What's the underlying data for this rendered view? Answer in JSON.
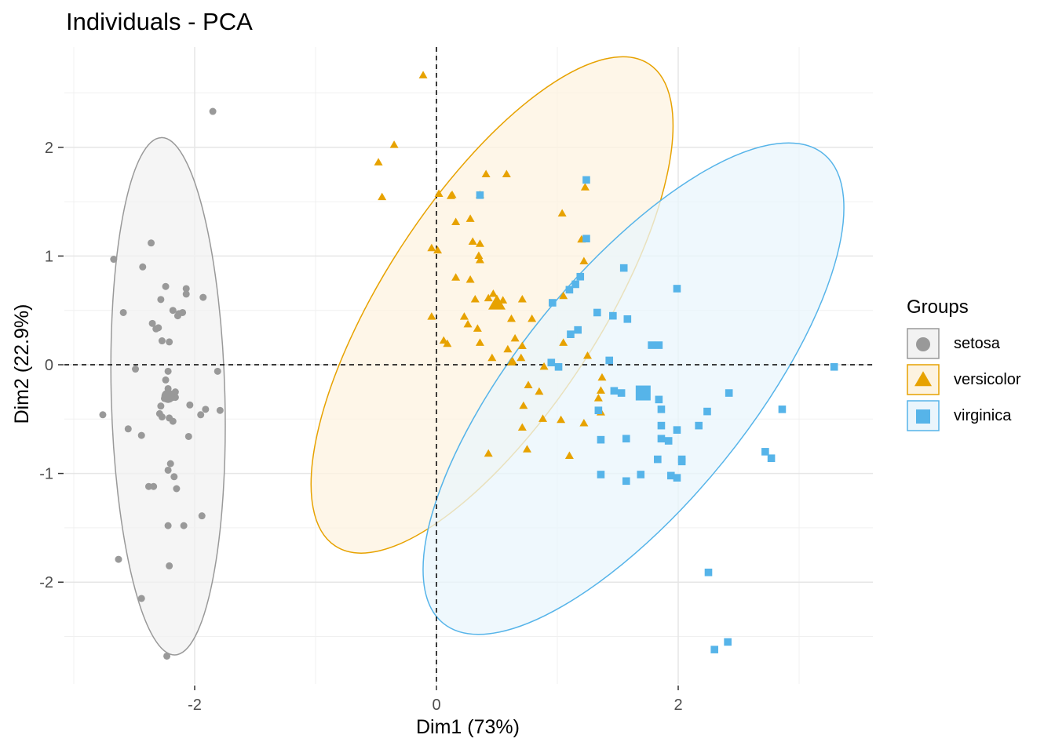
{
  "chart_data": {
    "type": "scatter",
    "title": "Individuals - PCA",
    "xlabel": "Dim1 (73%)",
    "ylabel": "Dim2 (22.9%)",
    "xlim": [
      -3.0,
      3.6
    ],
    "ylim": [
      -2.95,
      2.95
    ],
    "x_ticks": [
      -2,
      0,
      2
    ],
    "y_ticks": [
      -2,
      -1,
      0,
      1,
      2
    ],
    "x_tick_labels": [
      "-2",
      "0",
      "2"
    ],
    "y_tick_labels": [
      "-2",
      "-1",
      "0",
      "1",
      "2"
    ],
    "grid": true,
    "reference_lines": {
      "x": 0,
      "y": 0,
      "style": "dashed"
    },
    "legend_title": "Groups",
    "legend_position": "right",
    "series": [
      {
        "name": "setosa",
        "marker": "circle",
        "color": "#999999",
        "fill": "#f2f2f2",
        "centroid": [
          -2.22,
          -0.29
        ],
        "ellipse": {
          "cx": -2.22,
          "cy": -0.29,
          "rx": 0.47,
          "ry": 2.38,
          "angle": -1.5
        },
        "points": [
          [
            -1.85,
            2.33
          ],
          [
            -2.67,
            0.97
          ],
          [
            -2.36,
            1.12
          ],
          [
            -2.43,
            0.9
          ],
          [
            -2.24,
            0.72
          ],
          [
            -2.28,
            0.6
          ],
          [
            -2.07,
            0.7
          ],
          [
            -2.07,
            0.65
          ],
          [
            -1.93,
            0.62
          ],
          [
            -2.59,
            0.48
          ],
          [
            -2.18,
            0.5
          ],
          [
            -2.14,
            0.45
          ],
          [
            -2.3,
            0.34
          ],
          [
            -2.35,
            0.38
          ],
          [
            -2.32,
            0.33
          ],
          [
            -2.13,
            0.47
          ],
          [
            -2.1,
            0.48
          ],
          [
            -2.27,
            0.22
          ],
          [
            -2.21,
            0.21
          ],
          [
            -2.22,
            -0.06
          ],
          [
            -2.49,
            -0.04
          ],
          [
            -2.24,
            -0.14
          ],
          [
            -1.81,
            -0.06
          ],
          [
            -2.22,
            -0.22
          ],
          [
            -2.21,
            -0.29
          ],
          [
            -2.18,
            -0.3
          ],
          [
            -2.25,
            -0.31
          ],
          [
            -2.16,
            -0.25
          ],
          [
            -2.28,
            -0.38
          ],
          [
            -2.04,
            -0.37
          ],
          [
            -2.23,
            -0.29
          ],
          [
            -2.16,
            -0.3
          ],
          [
            -2.76,
            -0.46
          ],
          [
            -2.29,
            -0.45
          ],
          [
            -2.21,
            -0.49
          ],
          [
            -2.27,
            -0.48
          ],
          [
            -2.18,
            -0.52
          ],
          [
            -1.91,
            -0.41
          ],
          [
            -1.79,
            -0.42
          ],
          [
            -1.95,
            -0.46
          ],
          [
            -2.55,
            -0.59
          ],
          [
            -2.44,
            -0.65
          ],
          [
            -2.05,
            -0.66
          ],
          [
            -2.2,
            -0.91
          ],
          [
            -2.22,
            -0.97
          ],
          [
            -2.17,
            -1.03
          ],
          [
            -2.38,
            -1.12
          ],
          [
            -2.34,
            -1.12
          ],
          [
            -2.15,
            -1.14
          ],
          [
            -2.22,
            -1.48
          ],
          [
            -2.09,
            -1.48
          ],
          [
            -1.94,
            -1.39
          ],
          [
            -2.63,
            -1.79
          ],
          [
            -2.21,
            -1.85
          ],
          [
            -2.44,
            -2.15
          ],
          [
            -2.23,
            -2.68
          ]
        ]
      },
      {
        "name": "versicolor",
        "marker": "triangle",
        "color": "#E7A200",
        "fill": "#fdf3e0",
        "centroid": [
          0.5,
          0.56
        ],
        "ellipse": {
          "cx": 0.46,
          "cy": 0.55,
          "rx": 2.38,
          "ry": 0.96,
          "angle": -57
        },
        "points": [
          [
            -0.11,
            2.66
          ],
          [
            -0.35,
            2.02
          ],
          [
            -0.48,
            1.86
          ],
          [
            -0.45,
            1.54
          ],
          [
            0.41,
            1.75
          ],
          [
            0.58,
            1.75
          ],
          [
            0.02,
            1.57
          ],
          [
            0.12,
            1.55
          ],
          [
            0.13,
            1.56
          ],
          [
            0.36,
            1.56
          ],
          [
            1.23,
            1.63
          ],
          [
            1.04,
            1.39
          ],
          [
            0.28,
            1.34
          ],
          [
            0.16,
            1.31
          ],
          [
            0.3,
            1.13
          ],
          [
            0.36,
            1.11
          ],
          [
            1.2,
            1.15
          ],
          [
            -0.04,
            1.07
          ],
          [
            0.01,
            1.05
          ],
          [
            0.35,
            1.0
          ],
          [
            0.36,
            0.96
          ],
          [
            1.22,
            0.95
          ],
          [
            0.16,
            0.8
          ],
          [
            0.28,
            0.78
          ],
          [
            0.32,
            0.6
          ],
          [
            0.55,
            0.59
          ],
          [
            0.71,
            0.6
          ],
          [
            1.05,
            0.63
          ],
          [
            0.43,
            0.61
          ],
          [
            0.47,
            0.65
          ],
          [
            -0.04,
            0.44
          ],
          [
            0.23,
            0.44
          ],
          [
            0.62,
            0.42
          ],
          [
            0.79,
            0.42
          ],
          [
            0.26,
            0.37
          ],
          [
            0.34,
            0.33
          ],
          [
            0.06,
            0.22
          ],
          [
            0.09,
            0.19
          ],
          [
            0.36,
            0.2
          ],
          [
            0.65,
            0.24
          ],
          [
            0.71,
            0.17
          ],
          [
            0.59,
            0.14
          ],
          [
            0.46,
            0.06
          ],
          [
            0.62,
            0.02
          ],
          [
            1.05,
            0.2
          ],
          [
            1.25,
            0.08
          ],
          [
            0.7,
            0.06
          ],
          [
            0.63,
            0.03
          ],
          [
            0.89,
            -0.02
          ],
          [
            0.76,
            -0.19
          ],
          [
            1.37,
            -0.12
          ],
          [
            1.36,
            -0.24
          ],
          [
            0.85,
            -0.25
          ],
          [
            1.34,
            -0.31
          ],
          [
            0.72,
            -0.38
          ],
          [
            1.36,
            -0.44
          ],
          [
            0.88,
            -0.5
          ],
          [
            1.03,
            -0.51
          ],
          [
            1.22,
            -0.54
          ],
          [
            0.71,
            -0.58
          ],
          [
            0.43,
            -0.82
          ],
          [
            1.1,
            -0.84
          ],
          [
            0.75,
            -0.78
          ]
        ]
      },
      {
        "name": "virginica",
        "marker": "square",
        "color": "#56B4E9",
        "fill": "#eaf5fc",
        "centroid": [
          1.71,
          -0.26
        ],
        "ellipse": {
          "cx": 1.63,
          "cy": -0.22,
          "rx": 2.5,
          "ry": 1.03,
          "angle": -51
        },
        "points": [
          [
            1.24,
            1.7
          ],
          [
            0.36,
            1.56
          ],
          [
            1.24,
            1.16
          ],
          [
            1.55,
            0.89
          ],
          [
            1.99,
            0.7
          ],
          [
            1.19,
            0.81
          ],
          [
            1.1,
            0.69
          ],
          [
            1.15,
            0.74
          ],
          [
            0.96,
            0.57
          ],
          [
            1.33,
            0.48
          ],
          [
            1.46,
            0.45
          ],
          [
            1.58,
            0.42
          ],
          [
            1.17,
            0.32
          ],
          [
            1.11,
            0.28
          ],
          [
            1.78,
            0.18
          ],
          [
            1.84,
            0.18
          ],
          [
            0.95,
            0.02
          ],
          [
            1.01,
            -0.02
          ],
          [
            1.43,
            0.04
          ],
          [
            3.29,
            -0.02
          ],
          [
            1.47,
            -0.24
          ],
          [
            1.53,
            -0.26
          ],
          [
            1.84,
            -0.32
          ],
          [
            2.42,
            -0.26
          ],
          [
            1.86,
            -0.41
          ],
          [
            2.24,
            -0.43
          ],
          [
            1.34,
            -0.42
          ],
          [
            2.86,
            -0.41
          ],
          [
            2.17,
            -0.56
          ],
          [
            1.86,
            -0.56
          ],
          [
            1.99,
            -0.6
          ],
          [
            1.57,
            -0.68
          ],
          [
            1.36,
            -0.69
          ],
          [
            1.86,
            -0.68
          ],
          [
            1.92,
            -0.7
          ],
          [
            2.72,
            -0.8
          ],
          [
            2.77,
            -0.86
          ],
          [
            2.03,
            -0.87
          ],
          [
            1.83,
            -0.87
          ],
          [
            2.03,
            -0.89
          ],
          [
            1.36,
            -1.01
          ],
          [
            1.69,
            -1.01
          ],
          [
            1.94,
            -1.02
          ],
          [
            1.99,
            -1.04
          ],
          [
            1.57,
            -1.07
          ],
          [
            2.25,
            -1.91
          ],
          [
            2.41,
            -2.55
          ],
          [
            2.3,
            -2.62
          ]
        ]
      }
    ]
  }
}
